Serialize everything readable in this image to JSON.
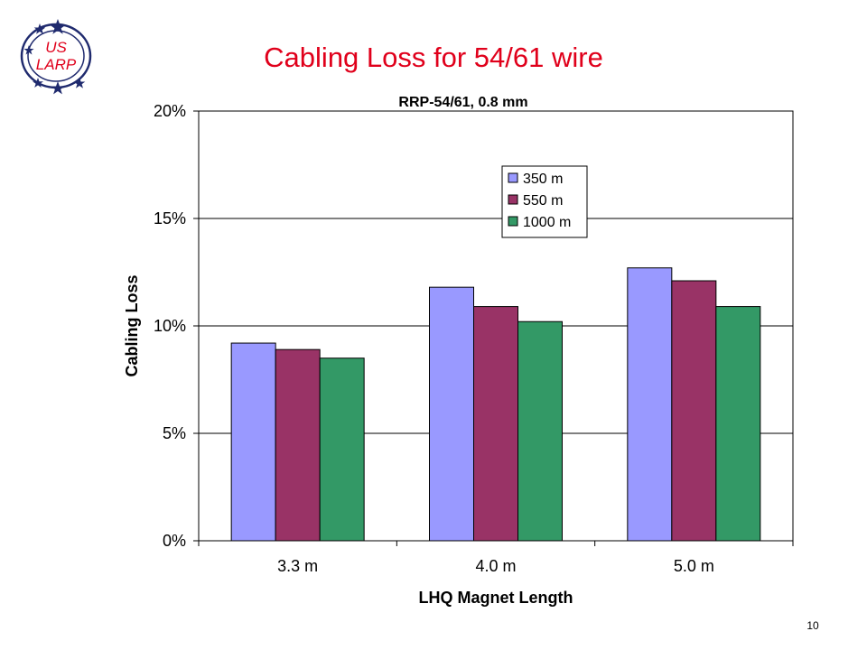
{
  "slide": {
    "title": "Cabling Loss for 54/61 wire",
    "page_number": "10"
  },
  "logo": {
    "line1": "US",
    "line2": "LARP",
    "text_color": "#e0001b",
    "ring_color": "#1f2a6e",
    "icon": "us-larp-logo-icon"
  },
  "chart_data": {
    "type": "bar",
    "title": "RRP-54/61, 0.8 mm",
    "xlabel": "LHQ Magnet Length",
    "ylabel": "Cabling Loss",
    "categories": [
      "3.3 m",
      "4.0 m",
      "5.0 m"
    ],
    "series": [
      {
        "name": "350 m",
        "color": "#9999ff",
        "values": [
          9.2,
          11.8,
          12.7
        ]
      },
      {
        "name": "550 m",
        "color": "#993366",
        "values": [
          8.9,
          10.9,
          12.1
        ]
      },
      {
        "name": "1000 m",
        "color": "#339966",
        "values": [
          8.5,
          10.2,
          10.9
        ]
      }
    ],
    "ylim": [
      0,
      20
    ],
    "yticks": [
      0,
      5,
      10,
      15,
      20
    ],
    "ytick_labels": [
      "0%",
      "5%",
      "10%",
      "15%",
      "20%"
    ],
    "grid": true,
    "legend_position": "top-center"
  }
}
